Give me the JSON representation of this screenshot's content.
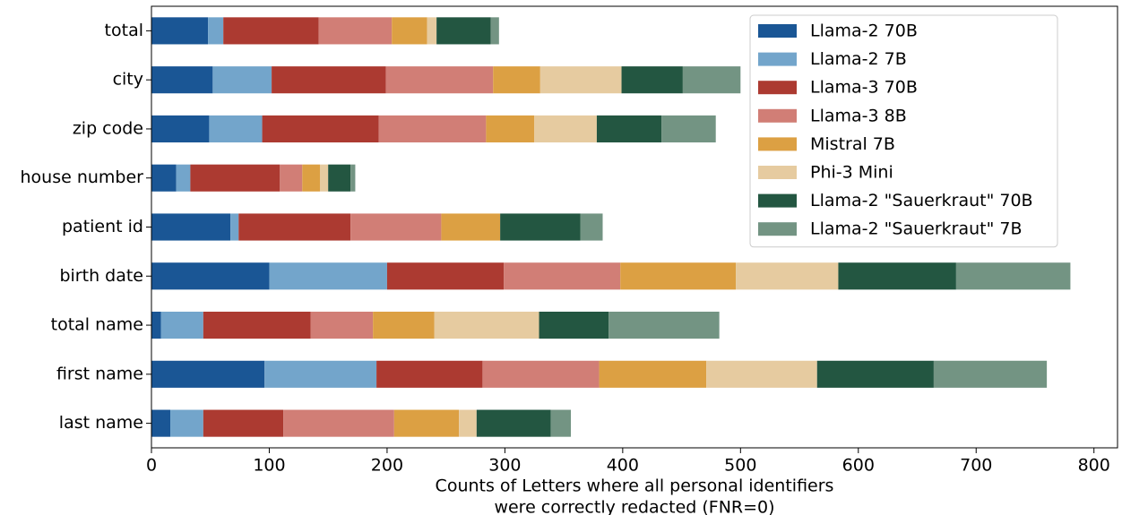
{
  "chart_data": {
    "type": "stacked-barh",
    "xlabel": [
      "Counts of Letters where all personal identifiers",
      "were correctly redacted (FNR=0)"
    ],
    "categories": [
      "total",
      "city",
      "zip code",
      "house number",
      "patient id",
      "birth date",
      "total name",
      "first name",
      "last name"
    ],
    "series": [
      {
        "name": "Llama-2 70B",
        "color": "#1a5695",
        "values": [
          48,
          52,
          49,
          21,
          67,
          100,
          8,
          96,
          16
        ]
      },
      {
        "name": "Llama-2 7B",
        "color": "#73a5cb",
        "values": [
          13,
          50,
          45,
          12,
          7,
          100,
          36,
          95,
          28
        ]
      },
      {
        "name": "Llama-3 70B",
        "color": "#ac3a31",
        "values": [
          81,
          97,
          99,
          76,
          95,
          99,
          91,
          90,
          68
        ]
      },
      {
        "name": "Llama-3 8B",
        "color": "#d17e76",
        "values": [
          62,
          91,
          91,
          19,
          77,
          99,
          53,
          99,
          94
        ]
      },
      {
        "name": "Mistral 7B",
        "color": "#dca043",
        "values": [
          30,
          40,
          41,
          15,
          50,
          98,
          52,
          91,
          55
        ]
      },
      {
        "name": "Phi-3 Mini",
        "color": "#e6cba0",
        "values": [
          8,
          69,
          53,
          7,
          0,
          87,
          89,
          94,
          15
        ]
      },
      {
        "name": "Llama-2 \"Sauerkraut\" 70B",
        "color": "#235641",
        "values": [
          46,
          52,
          55,
          19,
          68,
          100,
          59,
          99,
          63
        ]
      },
      {
        "name": "Llama-2 \"Sauerkraut\" 7B",
        "color": "#739483",
        "values": [
          7,
          49,
          46,
          4,
          19,
          97,
          94,
          96,
          17
        ]
      }
    ],
    "xlim": [
      0,
      820
    ],
    "xticks": [
      0,
      100,
      200,
      300,
      400,
      500,
      600,
      700,
      800
    ],
    "legend": "upper right"
  }
}
